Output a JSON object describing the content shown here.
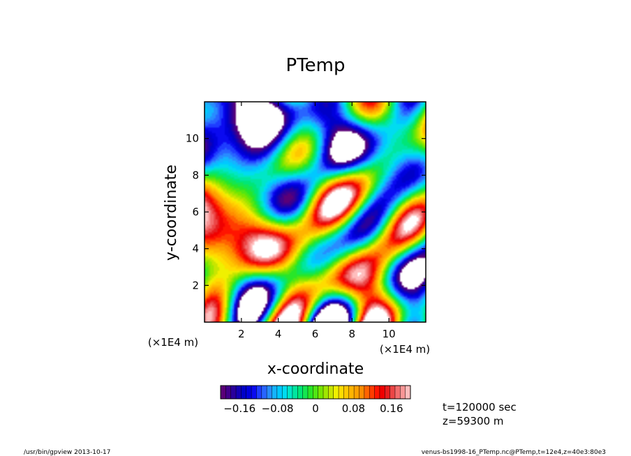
{
  "chart_data": {
    "type": "heatmap",
    "title": "PTemp",
    "xlabel": "x-coordinate",
    "ylabel": "y-coordinate",
    "x_unit": "(×1E4 m)",
    "y_unit": "(×1E4 m)",
    "xlim": [
      0,
      12
    ],
    "ylim": [
      0,
      12
    ],
    "x_ticks": [
      2,
      4,
      6,
      8,
      10
    ],
    "y_ticks": [
      2,
      4,
      6,
      8,
      10
    ],
    "x_tick_labels": [
      "2",
      "4",
      "6",
      "8",
      "10"
    ],
    "y_tick_labels": [
      "2",
      "4",
      "6",
      "8",
      "10"
    ],
    "colorbar": {
      "vmin": -0.2,
      "vmax": 0.2,
      "tick_values": [
        -0.16,
        -0.08,
        0,
        0.08,
        0.16
      ],
      "tick_labels": [
        "−0.16",
        "−0.08",
        "0",
        "0.08",
        "0.16"
      ],
      "colors": [
        "#5a0078",
        "#42008a",
        "#2a009c",
        "#1400b4",
        "#0000c8",
        "#0000dc",
        "#0a0af0",
        "#1e3cff",
        "#2864ff",
        "#288cff",
        "#14b4ff",
        "#00c8ff",
        "#00dcf0",
        "#00e6c8",
        "#00e6a0",
        "#00e678",
        "#14e650",
        "#28e628",
        "#50e614",
        "#78e600",
        "#a0e600",
        "#c8e600",
        "#f0f000",
        "#ffdc00",
        "#ffc800",
        "#ffb400",
        "#ffa000",
        "#ff8c00",
        "#ff6400",
        "#ff3c00",
        "#ff1400",
        "#f00000",
        "#e61e1e",
        "#ec4646",
        "#f26e6e",
        "#f89696",
        "#ffbebe"
      ]
    },
    "out_of_range_color": "#ffffff",
    "info_lines": [
      "t=120000 sec",
      "z=59300 m"
    ]
  },
  "footer": {
    "left": "/usr/bin/gpview   2013-10-17",
    "right": "venus-bs1998-16_PTemp.nc@PTemp,t=12e4,z=40e3:80e3"
  }
}
